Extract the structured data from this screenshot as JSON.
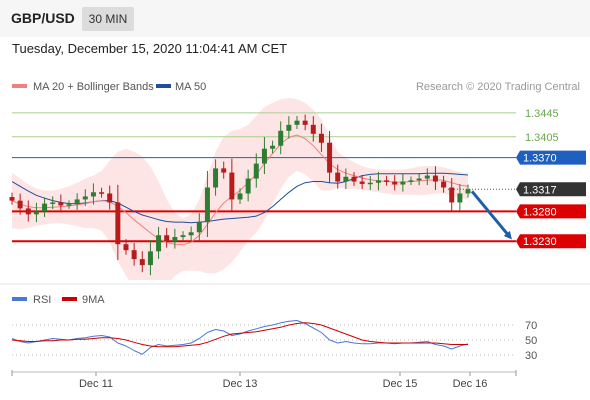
{
  "header": {
    "symbol": "GBP/USD",
    "interval": "30 MIN",
    "timestamp": "Tuesday, December 15, 2020 11:04:41 AM CET"
  },
  "legend": {
    "ma20": "MA 20 + Bollinger Bands",
    "ma50": "MA 50",
    "copyright": "Research © 2020 Trading Central",
    "rsi": "RSI",
    "rsi_ma": "9MA"
  },
  "colors": {
    "ma20": "#f08080",
    "bollinger_fill": "#fde0e0",
    "ma50": "#1f4e9a",
    "resistance": "#6aa84f",
    "pivot": "#1f5fbf",
    "support": "#dd0000",
    "current": "#333333",
    "rsi": "#4a78d6",
    "rsi_ma": "#cc0000",
    "candle_up": "#2e7d32",
    "candle_down": "#b71c1c",
    "arrow": "#1f5fa8"
  },
  "chart_data": [
    {
      "type": "candlestick",
      "title": "GBP/USD",
      "x_tick_labels": [
        "Dec 11",
        "Dec 13",
        "Dec 15",
        "Dec 16"
      ],
      "ylim": [
        1.3165,
        1.3475
      ],
      "price_levels": [
        {
          "value": 1.3445,
          "label": "1.3445",
          "kind": "resistance"
        },
        {
          "value": 1.3405,
          "label": "1.3405",
          "kind": "resistance"
        },
        {
          "value": 1.337,
          "label": "1.3370",
          "kind": "pivot"
        },
        {
          "value": 1.3317,
          "label": "1.3317",
          "kind": "current"
        },
        {
          "value": 1.328,
          "label": "1.3280",
          "kind": "support"
        },
        {
          "value": 1.323,
          "label": "1.3230",
          "kind": "support"
        }
      ],
      "close_series": [
        1.3298,
        1.3285,
        1.3275,
        1.328,
        1.3293,
        1.3295,
        1.329,
        1.3292,
        1.33,
        1.3305,
        1.3312,
        1.331,
        1.3295,
        1.3225,
        1.3215,
        1.32,
        1.319,
        1.3213,
        1.324,
        1.323,
        1.3237,
        1.324,
        1.3245,
        1.3262,
        1.332,
        1.3352,
        1.3345,
        1.33,
        1.331,
        1.3335,
        1.336,
        1.3385,
        1.339,
        1.3415,
        1.3425,
        1.3432,
        1.3425,
        1.341,
        1.3395,
        1.3345,
        1.333,
        1.3338,
        1.333,
        1.3326,
        1.3328,
        1.3332,
        1.333,
        1.3325,
        1.333,
        1.3332,
        1.3335,
        1.334,
        1.333,
        1.332,
        1.3295,
        1.331,
        1.3317
      ],
      "ma20": [
        1.3298,
        1.3292,
        1.3288,
        1.3286,
        1.3286,
        1.3287,
        1.3288,
        1.3289,
        1.3291,
        1.3293,
        1.3296,
        1.3298,
        1.3296,
        1.3288,
        1.3278,
        1.3266,
        1.3255,
        1.3244,
        1.3234,
        1.3228,
        1.3225,
        1.3224,
        1.3228,
        1.324,
        1.3258,
        1.3278,
        1.3294,
        1.3305,
        1.3315,
        1.3328,
        1.3342,
        1.336,
        1.3377,
        1.3393,
        1.3404,
        1.3408,
        1.3402,
        1.339,
        1.3375,
        1.336,
        1.335,
        1.3344,
        1.334,
        1.3336,
        1.3333,
        1.3331,
        1.333,
        1.3329,
        1.3329,
        1.333,
        1.3331,
        1.3332,
        1.3333,
        1.3332,
        1.3328,
        1.3324,
        1.3322
      ],
      "bollinger_upper": [
        1.3345,
        1.3335,
        1.3325,
        1.3318,
        1.3315,
        1.3315,
        1.3318,
        1.3322,
        1.3328,
        1.3335,
        1.334,
        1.3348,
        1.3365,
        1.338,
        1.3385,
        1.338,
        1.3372,
        1.3355,
        1.333,
        1.33,
        1.3278,
        1.3268,
        1.3275,
        1.33,
        1.334,
        1.338,
        1.3405,
        1.3415,
        1.3418,
        1.3425,
        1.344,
        1.3455,
        1.3462,
        1.3468,
        1.347,
        1.3468,
        1.3462,
        1.345,
        1.3435,
        1.3405,
        1.338,
        1.337,
        1.3362,
        1.3356,
        1.3352,
        1.335,
        1.335,
        1.335,
        1.335,
        1.3352,
        1.3355,
        1.3356,
        1.3356,
        1.3354,
        1.335,
        1.3346,
        1.3344
      ],
      "bollinger_lower": [
        1.3252,
        1.325,
        1.3252,
        1.3256,
        1.3258,
        1.326,
        1.326,
        1.3258,
        1.3255,
        1.3252,
        1.3252,
        1.3248,
        1.3228,
        1.3196,
        1.3172,
        1.3152,
        1.3138,
        1.3134,
        1.3138,
        1.3156,
        1.3172,
        1.318,
        1.3181,
        1.318,
        1.3176,
        1.3176,
        1.3183,
        1.3195,
        1.3212,
        1.3231,
        1.3244,
        1.3265,
        1.3292,
        1.3318,
        1.3338,
        1.3348,
        1.3342,
        1.333,
        1.3315,
        1.3315,
        1.332,
        1.3318,
        1.3318,
        1.3316,
        1.3314,
        1.3312,
        1.331,
        1.3308,
        1.3308,
        1.3308,
        1.3307,
        1.3308,
        1.331,
        1.331,
        1.3306,
        1.3302,
        1.33
      ],
      "ma50": [
        1.333,
        1.3322,
        1.3314,
        1.3307,
        1.3302,
        1.3298,
        1.3295,
        1.3293,
        1.3293,
        1.3294,
        1.3296,
        1.3298,
        1.3298,
        1.3294,
        1.3287,
        1.328,
        1.3274,
        1.327,
        1.3266,
        1.3263,
        1.3262,
        1.3262,
        1.3261,
        1.3262,
        1.3263,
        1.3265,
        1.3267,
        1.3268,
        1.3269,
        1.327,
        1.3272,
        1.3278,
        1.3288,
        1.33,
        1.3312,
        1.3322,
        1.3328,
        1.333,
        1.333,
        1.3328,
        1.3327,
        1.333,
        1.3335,
        1.334,
        1.3342,
        1.3343,
        1.3343,
        1.3343,
        1.3343,
        1.3343,
        1.3343,
        1.3344,
        1.3344,
        1.3344,
        1.3343,
        1.3342,
        1.3341
      ],
      "projection_arrow": {
        "from": 1.3317,
        "to": 1.323
      }
    },
    {
      "type": "line",
      "title": "RSI",
      "y_tick_labels": [
        "70",
        "50",
        "30"
      ],
      "ylim": [
        10,
        90
      ],
      "reference_lines": [
        70,
        50,
        30
      ],
      "series": [
        {
          "name": "RSI",
          "values": [
            52,
            48,
            46,
            48,
            50,
            52,
            51,
            50,
            52,
            53,
            55,
            56,
            54,
            46,
            42,
            36,
            31,
            40,
            44,
            42,
            43,
            44,
            46,
            52,
            60,
            64,
            62,
            56,
            58,
            62,
            65,
            68,
            70,
            73,
            75,
            76,
            72,
            66,
            60,
            50,
            46,
            48,
            46,
            45,
            45,
            46,
            46,
            45,
            46,
            46,
            47,
            48,
            44,
            42,
            38,
            42,
            45
          ]
        },
        {
          "name": "9MA",
          "values": [
            50,
            49,
            48,
            48,
            49,
            49,
            50,
            50,
            51,
            51,
            52,
            53,
            53,
            52,
            50,
            47,
            44,
            42,
            41,
            41,
            41,
            42,
            43,
            44,
            47,
            51,
            55,
            58,
            59,
            60,
            61,
            63,
            65,
            67,
            70,
            72,
            73,
            72,
            70,
            66,
            62,
            58,
            54,
            50,
            48,
            47,
            46,
            46,
            46,
            46,
            46,
            46,
            46,
            45,
            44,
            44,
            44
          ]
        }
      ]
    }
  ]
}
